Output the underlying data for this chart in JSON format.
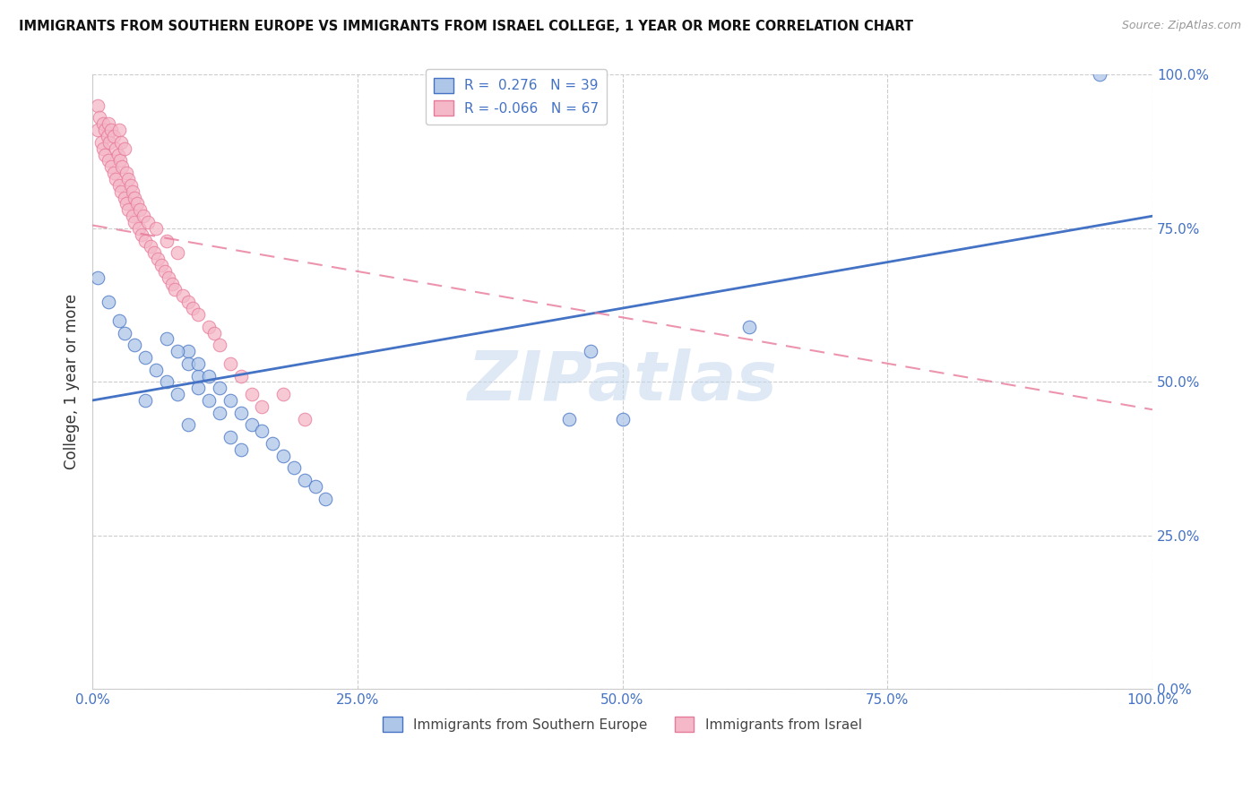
{
  "title": "IMMIGRANTS FROM SOUTHERN EUROPE VS IMMIGRANTS FROM ISRAEL COLLEGE, 1 YEAR OR MORE CORRELATION CHART",
  "source": "Source: ZipAtlas.com",
  "ylabel": "College, 1 year or more",
  "xlim": [
    0.0,
    1.0
  ],
  "ylim": [
    0.0,
    1.0
  ],
  "xticks": [
    0.0,
    0.25,
    0.5,
    0.75,
    1.0
  ],
  "yticks": [
    0.0,
    0.25,
    0.5,
    0.75,
    1.0
  ],
  "xticklabels": [
    "0.0%",
    "25.0%",
    "50.0%",
    "75.0%",
    "100.0%"
  ],
  "yticklabels": [
    "0.0%",
    "25.0%",
    "50.0%",
    "75.0%",
    "100.0%"
  ],
  "blue_R": 0.276,
  "blue_N": 39,
  "pink_R": -0.066,
  "pink_N": 67,
  "blue_color": "#aec6e8",
  "pink_color": "#f4b8c8",
  "blue_line_color": "#4472c4",
  "pink_line_color": "#e87a9a",
  "watermark": "ZIPatlas",
  "legend_blue_label": "Immigrants from Southern Europe",
  "legend_pink_label": "Immigrants from Israel",
  "blue_scatter_x": [
    0.005,
    0.015,
    0.025,
    0.03,
    0.04,
    0.05,
    0.06,
    0.07,
    0.08,
    0.09,
    0.05,
    0.07,
    0.08,
    0.09,
    0.1,
    0.1,
    0.11,
    0.12,
    0.09,
    0.1,
    0.11,
    0.12,
    0.13,
    0.14,
    0.15,
    0.13,
    0.14,
    0.16,
    0.17,
    0.18,
    0.19,
    0.2,
    0.21,
    0.22,
    0.45,
    0.47,
    0.5,
    0.62,
    0.95
  ],
  "blue_scatter_y": [
    0.67,
    0.63,
    0.6,
    0.58,
    0.56,
    0.54,
    0.52,
    0.5,
    0.48,
    0.55,
    0.47,
    0.57,
    0.55,
    0.53,
    0.51,
    0.49,
    0.47,
    0.45,
    0.43,
    0.53,
    0.51,
    0.49,
    0.47,
    0.45,
    0.43,
    0.41,
    0.39,
    0.42,
    0.4,
    0.38,
    0.36,
    0.34,
    0.33,
    0.31,
    0.44,
    0.55,
    0.44,
    0.59,
    1.0
  ],
  "pink_scatter_x": [
    0.005,
    0.005,
    0.007,
    0.008,
    0.01,
    0.01,
    0.012,
    0.012,
    0.014,
    0.015,
    0.015,
    0.016,
    0.018,
    0.018,
    0.02,
    0.02,
    0.022,
    0.022,
    0.024,
    0.025,
    0.025,
    0.026,
    0.027,
    0.027,
    0.028,
    0.03,
    0.03,
    0.032,
    0.032,
    0.034,
    0.034,
    0.036,
    0.038,
    0.038,
    0.04,
    0.04,
    0.042,
    0.044,
    0.045,
    0.046,
    0.048,
    0.05,
    0.052,
    0.055,
    0.058,
    0.06,
    0.062,
    0.065,
    0.068,
    0.07,
    0.072,
    0.075,
    0.078,
    0.08,
    0.085,
    0.09,
    0.095,
    0.1,
    0.11,
    0.115,
    0.12,
    0.13,
    0.14,
    0.15,
    0.16,
    0.18,
    0.2
  ],
  "pink_scatter_y": [
    0.95,
    0.91,
    0.93,
    0.89,
    0.92,
    0.88,
    0.91,
    0.87,
    0.9,
    0.92,
    0.86,
    0.89,
    0.91,
    0.85,
    0.9,
    0.84,
    0.88,
    0.83,
    0.87,
    0.91,
    0.82,
    0.86,
    0.89,
    0.81,
    0.85,
    0.88,
    0.8,
    0.84,
    0.79,
    0.83,
    0.78,
    0.82,
    0.81,
    0.77,
    0.8,
    0.76,
    0.79,
    0.75,
    0.78,
    0.74,
    0.77,
    0.73,
    0.76,
    0.72,
    0.71,
    0.75,
    0.7,
    0.69,
    0.68,
    0.73,
    0.67,
    0.66,
    0.65,
    0.71,
    0.64,
    0.63,
    0.62,
    0.61,
    0.59,
    0.58,
    0.56,
    0.53,
    0.51,
    0.48,
    0.46,
    0.48,
    0.44
  ],
  "blue_trend_y_start": 0.47,
  "blue_trend_y_end": 0.77,
  "pink_trend_y_start": 0.755,
  "pink_trend_y_end": 0.455
}
